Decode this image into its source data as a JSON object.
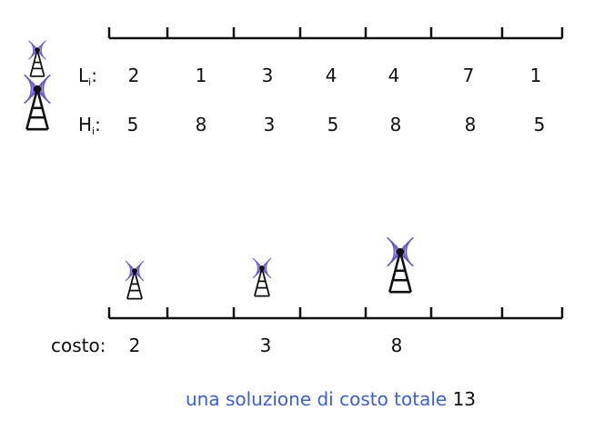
{
  "rows": {
    "L": {
      "label": "L",
      "sub": "i",
      "suffix": ":",
      "values": [
        "2",
        "1",
        "3",
        "4",
        "4",
        "7",
        "1"
      ]
    },
    "H": {
      "label": "H",
      "sub": "i",
      "suffix": ":",
      "values": [
        "5",
        "8",
        "3",
        "5",
        "8",
        "8",
        "5"
      ]
    }
  },
  "solution": {
    "label": "costo:",
    "costs": [
      "2",
      "3",
      "8"
    ]
  },
  "caption": {
    "text": "una soluzione di costo totale",
    "total": "13"
  },
  "colors": {
    "ink": "#111111",
    "accent": "#3b5ee6",
    "wave": "#6a5acd"
  },
  "icons": [
    "antenna-tower-small-icon",
    "antenna-tower-large-icon"
  ]
}
